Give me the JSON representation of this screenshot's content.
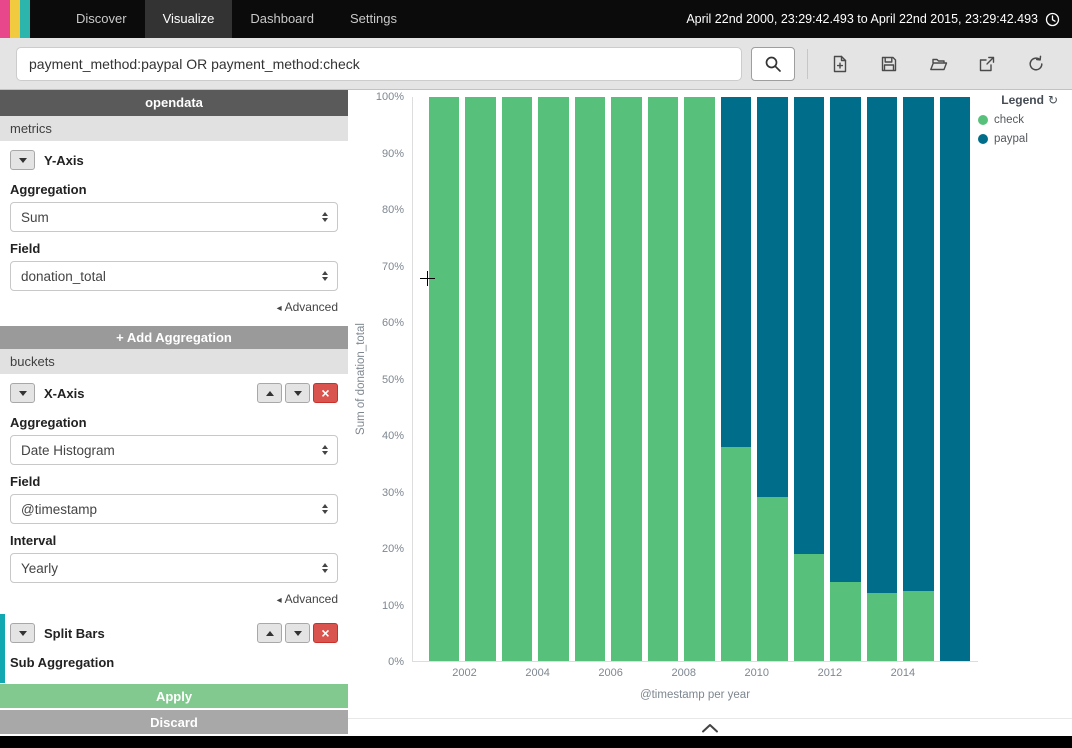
{
  "nav": {
    "brand_colors": [
      "#e8488b",
      "#f2ca40",
      "#2cb5ac"
    ],
    "items": [
      {
        "label": "Discover"
      },
      {
        "label": "Visualize"
      },
      {
        "label": "Dashboard"
      },
      {
        "label": "Settings"
      }
    ],
    "active_item": "Visualize",
    "time_range": "April 22nd 2000, 23:29:42.493 to April 22nd 2015, 23:29:42.493"
  },
  "toolbar": {
    "query": "payment_method:paypal OR payment_method:check",
    "actions": [
      "new-visualization",
      "save-visualization",
      "load-saved-visualization",
      "share-visualization",
      "refresh"
    ]
  },
  "sidebar": {
    "index_pattern": "opendata",
    "metrics_header": "metrics",
    "buckets_header": "buckets",
    "add_aggregation_label": "+ Add Aggregation",
    "advanced_label": "Advanced",
    "apply_label": "Apply",
    "discard_label": "Discard",
    "y_axis": {
      "title": "Y-Axis",
      "aggregation_label": "Aggregation",
      "aggregation_value": "Sum",
      "field_label": "Field",
      "field_value": "donation_total"
    },
    "x_axis": {
      "title": "X-Axis",
      "aggregation_label": "Aggregation",
      "aggregation_value": "Date Histogram",
      "field_label": "Field",
      "field_value": "@timestamp",
      "interval_label": "Interval",
      "interval_value": "Yearly"
    },
    "split_bars": {
      "title": "Split Bars",
      "sub_aggregation_label": "Sub Aggregation"
    }
  },
  "icons": {
    "caret_left": "◂",
    "close": "×",
    "legend_toggle": "↻"
  },
  "chart_data": {
    "type": "bar",
    "mode": "stacked_percentage",
    "title": "",
    "xlabel": "@timestamp per year",
    "ylabel": "Sum of donation_total",
    "ylim": [
      0,
      100
    ],
    "ytick_step": 10,
    "ytick_suffix": "%",
    "grid": false,
    "legend_title": "Legend",
    "legend_position": "top-right",
    "years": [
      2001,
      2002,
      2003,
      2004,
      2005,
      2006,
      2007,
      2008,
      2009,
      2010,
      2011,
      2012,
      2013,
      2014,
      2015
    ],
    "xticks": [
      2002,
      2004,
      2006,
      2008,
      2010,
      2012,
      2014
    ],
    "series": [
      {
        "name": "check",
        "color": "#57c17b",
        "values": [
          100,
          100,
          100,
          100,
          100,
          100,
          100,
          100,
          38,
          29,
          19,
          14,
          12,
          12.5,
          0
        ]
      },
      {
        "name": "paypal",
        "color": "#006e8a",
        "values": [
          0,
          0,
          0,
          0,
          0,
          0,
          0,
          0,
          62,
          71,
          81,
          86,
          88,
          87.5,
          100
        ]
      }
    ]
  }
}
